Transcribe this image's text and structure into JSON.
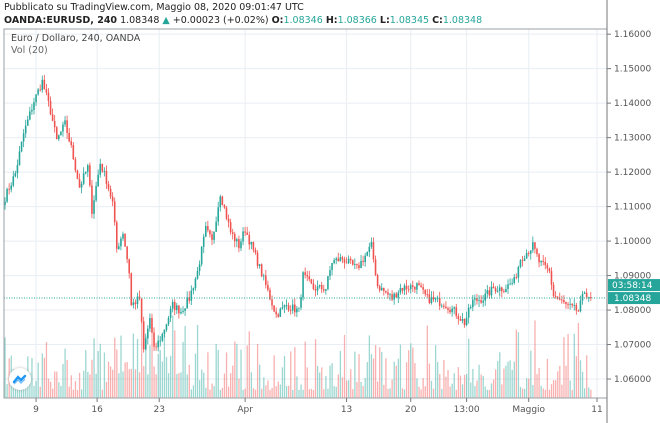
{
  "header": {
    "published": "Pubblicato su TradingView.com, Maggio 08, 2020 09:01:47 UTC",
    "symbol": "OANDA:EURUSD, 240",
    "last": "1.08348",
    "change": "+0.00023 (+0.02%)",
    "o_label": "O:",
    "o": "1.08346",
    "h_label": "H:",
    "h": "1.08366",
    "l_label": "L:",
    "l": "1.08345",
    "c_label": "C:",
    "c": "1.08348"
  },
  "legend": {
    "title": "Euro / Dollaro, 240, OANDA",
    "volume": "Vol (20)"
  },
  "colors": {
    "up": "#26a69a",
    "down": "#ef5350",
    "grid": "#e8eef3",
    "axis": "#555555"
  },
  "chart_data": {
    "type": "candlestick",
    "title": "Euro / Dollaro, 240, OANDA",
    "total_bars": 291,
    "ylim": [
      1.0545,
      1.1615
    ],
    "y_ticks": [
      "1.06000",
      "1.07000",
      "1.08000",
      "1.09000",
      "1.10000",
      "1.11000",
      "1.12000",
      "1.13000",
      "1.14000",
      "1.15000",
      "1.16000"
    ],
    "x_ticks": [
      {
        "label": "9",
        "bar": 15
      },
      {
        "label": "16",
        "bar": 44.5
      },
      {
        "label": "23",
        "bar": 74.5
      },
      {
        "label": "Apr",
        "bar": 116
      },
      {
        "label": "13",
        "bar": 165
      },
      {
        "label": "20",
        "bar": 196
      },
      {
        "label": "13:00",
        "bar": 223
      },
      {
        "label": "Maggio",
        "bar": 253
      },
      {
        "label": "11",
        "bar": 286
      }
    ],
    "close_keypoints": [
      [
        0,
        1.1127
      ],
      [
        5,
        1.1196
      ],
      [
        9,
        1.1311
      ],
      [
        14,
        1.1406
      ],
      [
        18,
        1.1463
      ],
      [
        22,
        1.1377
      ],
      [
        25,
        1.1291
      ],
      [
        29,
        1.134
      ],
      [
        32,
        1.127
      ],
      [
        36,
        1.1157
      ],
      [
        40,
        1.1214
      ],
      [
        42,
        1.109
      ],
      [
        46,
        1.1226
      ],
      [
        49,
        1.1177
      ],
      [
        52,
        1.1111
      ],
      [
        54,
        1.0977
      ],
      [
        57,
        1.1026
      ],
      [
        60,
        1.0911
      ],
      [
        61,
        1.0814
      ],
      [
        65,
        1.0834
      ],
      [
        67,
        1.0683
      ],
      [
        70,
        1.0777
      ],
      [
        72,
        1.0683
      ],
      [
        76,
        1.0729
      ],
      [
        81,
        1.0814
      ],
      [
        85,
        1.0797
      ],
      [
        89,
        1.0834
      ],
      [
        93,
        1.0911
      ],
      [
        97,
        1.1034
      ],
      [
        100,
        1.0997
      ],
      [
        104,
        1.114
      ],
      [
        109,
        1.1026
      ],
      [
        113,
        1.0986
      ],
      [
        116,
        1.1034
      ],
      [
        122,
        1.094
      ],
      [
        127,
        1.0854
      ],
      [
        131,
        1.0786
      ],
      [
        136,
        1.0814
      ],
      [
        142,
        1.0797
      ],
      [
        144,
        1.09
      ],
      [
        149,
        1.0863
      ],
      [
        155,
        1.0863
      ],
      [
        158,
        1.094
      ],
      [
        163,
        1.0949
      ],
      [
        170,
        1.092
      ],
      [
        177,
        1.0986
      ],
      [
        180,
        1.0871
      ],
      [
        187,
        1.0834
      ],
      [
        191,
        1.0863
      ],
      [
        199,
        1.0871
      ],
      [
        204,
        1.0834
      ],
      [
        212,
        1.082
      ],
      [
        217,
        1.0797
      ],
      [
        222,
        1.0763
      ],
      [
        226,
        1.0826
      ],
      [
        231,
        1.0834
      ],
      [
        236,
        1.0863
      ],
      [
        241,
        1.0863
      ],
      [
        246,
        1.0883
      ],
      [
        249,
        1.0949
      ],
      [
        255,
        1.0986
      ],
      [
        258,
        1.094
      ],
      [
        263,
        1.0911
      ],
      [
        265,
        1.0843
      ],
      [
        271,
        1.0814
      ],
      [
        277,
        1.0797
      ],
      [
        280,
        1.0854
      ],
      [
        283,
        1.0835
      ]
    ],
    "last_price": "1.08348",
    "countdown": "03:58:14",
    "volume_series": "Vol (20)"
  }
}
